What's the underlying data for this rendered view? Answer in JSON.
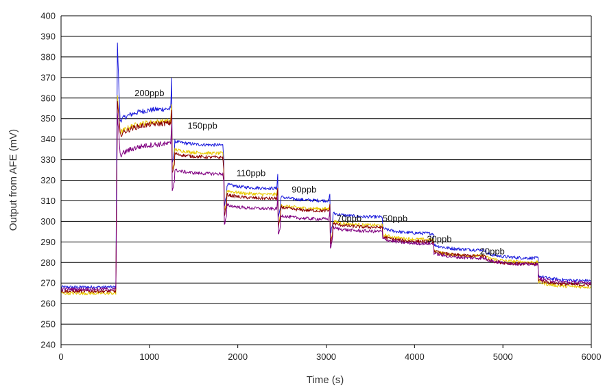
{
  "chart_data": {
    "type": "line",
    "title": "",
    "xlabel": "Time (s)",
    "ylabel": "Output from AFE (mV)",
    "xlim": [
      0,
      6000
    ],
    "ylim": [
      240,
      400
    ],
    "x_ticks": [
      0,
      1000,
      2000,
      3000,
      4000,
      5000,
      6000
    ],
    "x_tick_labels": [
      "0",
      "1000",
      "2000",
      "3000",
      "4000",
      "5000",
      "6000"
    ],
    "y_ticks": [
      240,
      250,
      260,
      270,
      280,
      290,
      300,
      310,
      320,
      330,
      340,
      350,
      360,
      370,
      380,
      390,
      400
    ],
    "y_tick_labels": [
      "240",
      "250",
      "260",
      "270",
      "280",
      "290",
      "300",
      "310",
      "320",
      "330",
      "340",
      "350",
      "360",
      "370",
      "380",
      "390",
      "400"
    ],
    "grid": "horizontal",
    "legend": "none",
    "annotations": [
      {
        "text": "200ppb",
        "x": 1000,
        "y": 361
      },
      {
        "text": "150ppb",
        "x": 1600,
        "y": 345
      },
      {
        "text": "110ppb",
        "x": 2150,
        "y": 322
      },
      {
        "text": "90ppb",
        "x": 2750,
        "y": 314
      },
      {
        "text": "70ppb",
        "x": 3260,
        "y": 300
      },
      {
        "text": "50ppb",
        "x": 3780,
        "y": 300
      },
      {
        "text": "30ppb",
        "x": 4280,
        "y": 290
      },
      {
        "text": "20ppb",
        "x": 4880,
        "y": 284
      }
    ],
    "segment_times": [
      0,
      620,
      1240,
      1830,
      2440,
      3030,
      3640,
      4220,
      4810,
      5400,
      6000
    ],
    "series": [
      {
        "color": "#1a1adc",
        "levels": [
          268,
          355,
          337,
          316,
          310,
          302,
          294,
          286,
          282,
          271
        ],
        "peaks": [
          386,
          376,
          328,
          326,
          315,
          0,
          0,
          0,
          0
        ]
      },
      {
        "color": "#e8c800",
        "levels": [
          265,
          349,
          333,
          313,
          306,
          298,
          291,
          283,
          280,
          268
        ],
        "peaks": [
          360,
          360,
          322,
          318,
          310,
          0,
          0,
          0,
          0
        ]
      },
      {
        "color": "#8b0000",
        "levels": [
          266,
          348,
          331,
          311,
          305,
          297,
          290,
          283,
          279,
          269
        ],
        "peaks": [
          358,
          358,
          322,
          318,
          309,
          0,
          0,
          0,
          0
        ]
      },
      {
        "color": "#800080",
        "levels": [
          267,
          338,
          323,
          306,
          301,
          295,
          289,
          282,
          279,
          270
        ],
        "peaks": [
          352,
          352,
          318,
          315,
          307,
          0,
          0,
          0,
          0
        ]
      }
    ]
  }
}
